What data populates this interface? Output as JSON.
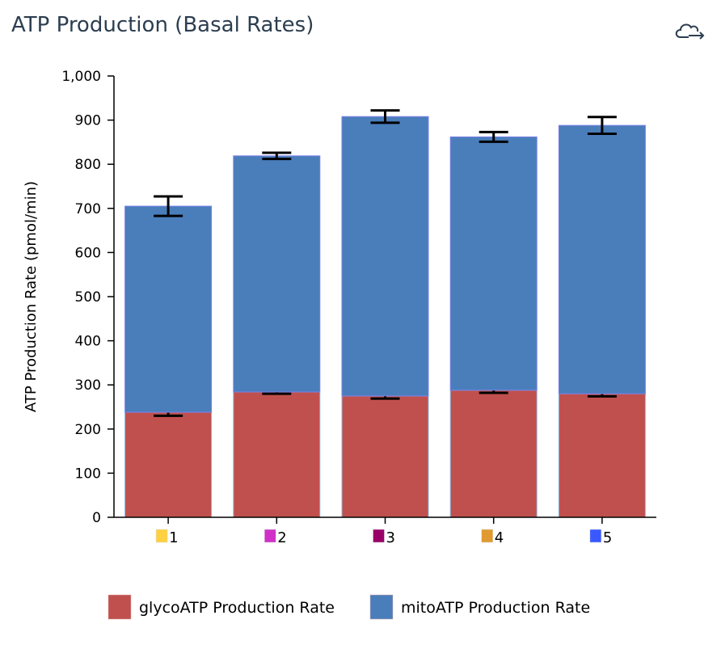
{
  "header": {
    "title": "ATP Production (Basal Rates)",
    "export_icon": "cloud-export-icon"
  },
  "chart_data": {
    "type": "bar",
    "stacked": true,
    "title": "ATP Production (Basal Rates)",
    "xlabel": "",
    "ylabel": "ATP Production Rate (pmol/min)",
    "ylim": [
      0,
      1000
    ],
    "yticks": [
      "0",
      "100",
      "200",
      "300",
      "400",
      "500",
      "600",
      "700",
      "800",
      "900",
      "1,000"
    ],
    "ytick_values": [
      0,
      100,
      200,
      300,
      400,
      500,
      600,
      700,
      800,
      900,
      1000
    ],
    "categories": [
      "1",
      "2",
      "3",
      "4",
      "5"
    ],
    "category_colors": [
      "#ffd040",
      "#d030c8",
      "#980068",
      "#e09a30",
      "#3a58ff"
    ],
    "series": [
      {
        "name": "glycoATP Production Rate",
        "color": "#c0504d",
        "values": [
          238,
          284,
          275,
          288,
          280
        ],
        "errors": [
          8,
          4,
          6,
          6,
          6
        ]
      },
      {
        "name": "mitoATP Production Rate",
        "color": "#4a7ebb",
        "values": [
          467,
          535,
          633,
          574,
          608
        ],
        "errors": [
          22,
          7,
          14,
          11,
          19
        ]
      }
    ],
    "legend_position": "bottom",
    "grid": false
  }
}
